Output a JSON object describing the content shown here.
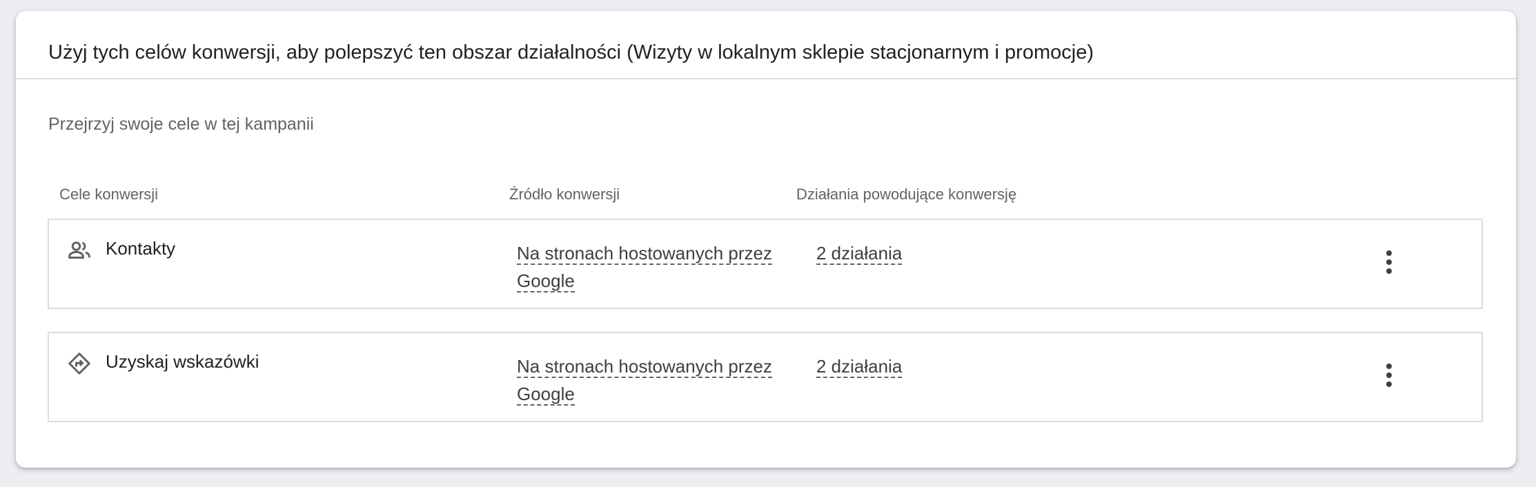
{
  "card": {
    "title": "Użyj tych celów konwersji, aby polepszyć ten obszar działalności (Wizyty w lokalnym sklepie stacjonarnym i promocje)",
    "subtitle": "Przejrzyj swoje cele w tej kampanii"
  },
  "table": {
    "headers": [
      "Cele konwersji",
      "Źródło konwersji",
      "Działania powodujące konwersję"
    ],
    "rows": [
      {
        "icon": "people-icon",
        "goal": "Kontakty",
        "source_line1": "Na stronach hostowanych przez",
        "source_line2": "Google",
        "actions": "2 działania"
      },
      {
        "icon": "directions-icon",
        "goal": "Uzyskaj wskazówki",
        "source_line1": "Na stronach hostowanych przez",
        "source_line2": "Google",
        "actions": "2 działania"
      }
    ]
  }
}
